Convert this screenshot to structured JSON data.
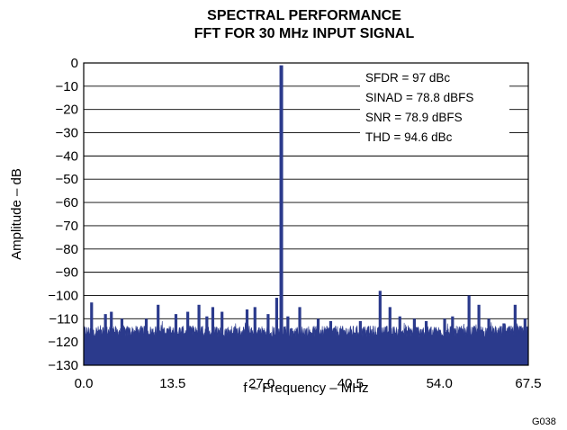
{
  "chart_data": {
    "type": "line",
    "title": [
      "SPECTRAL PERFORMANCE",
      "FFT FOR 30 MHz INPUT SIGNAL"
    ],
    "xlabel": "f – Frequency – MHz",
    "ylabel": "Amplitude – dB",
    "xlim": [
      0,
      67.5
    ],
    "ylim": [
      -130,
      0
    ],
    "x_ticks": [
      "0.0",
      "13.5",
      "27.0",
      "40.5",
      "54.0",
      "67.5"
    ],
    "y_ticks": [
      "0",
      "−10",
      "−20",
      "−30",
      "−40",
      "−50",
      "−60",
      "−70",
      "−80",
      "−90",
      "−100",
      "−110",
      "−120",
      "−130"
    ],
    "grid": "horizontal",
    "series_color": "#2b3a8c",
    "noise_floor": {
      "baseline": -118,
      "top": -113
    },
    "fundamental": {
      "x": 30,
      "y": -1
    },
    "spurs": [
      {
        "x": 1.2,
        "y": -103
      },
      {
        "x": 3.3,
        "y": -108
      },
      {
        "x": 4.2,
        "y": -107
      },
      {
        "x": 5.8,
        "y": -110
      },
      {
        "x": 9.5,
        "y": -110
      },
      {
        "x": 11.3,
        "y": -104
      },
      {
        "x": 14.0,
        "y": -108
      },
      {
        "x": 15.8,
        "y": -107
      },
      {
        "x": 17.5,
        "y": -104
      },
      {
        "x": 18.7,
        "y": -109
      },
      {
        "x": 19.6,
        "y": -105
      },
      {
        "x": 21.0,
        "y": -107
      },
      {
        "x": 24.8,
        "y": -106
      },
      {
        "x": 26.0,
        "y": -105
      },
      {
        "x": 28.0,
        "y": -108
      },
      {
        "x": 29.3,
        "y": -101
      },
      {
        "x": 31.0,
        "y": -109
      },
      {
        "x": 32.8,
        "y": -105
      },
      {
        "x": 35.6,
        "y": -110
      },
      {
        "x": 37.5,
        "y": -111
      },
      {
        "x": 42.0,
        "y": -111
      },
      {
        "x": 45.0,
        "y": -98
      },
      {
        "x": 46.5,
        "y": -105
      },
      {
        "x": 48.0,
        "y": -109
      },
      {
        "x": 50.2,
        "y": -110
      },
      {
        "x": 52.0,
        "y": -111
      },
      {
        "x": 54.8,
        "y": -110
      },
      {
        "x": 56.0,
        "y": -109
      },
      {
        "x": 58.5,
        "y": -100
      },
      {
        "x": 60.0,
        "y": -104
      },
      {
        "x": 61.5,
        "y": -110
      },
      {
        "x": 63.8,
        "y": -112
      },
      {
        "x": 65.5,
        "y": -104
      },
      {
        "x": 67.0,
        "y": -110
      }
    ],
    "annotations": [
      "SFDR = 97 dBc",
      "SINAD = 78.8 dBFS",
      "SNR = 78.9 dBFS",
      "THD = 94.6 dBc"
    ],
    "figure_id": "G038"
  }
}
